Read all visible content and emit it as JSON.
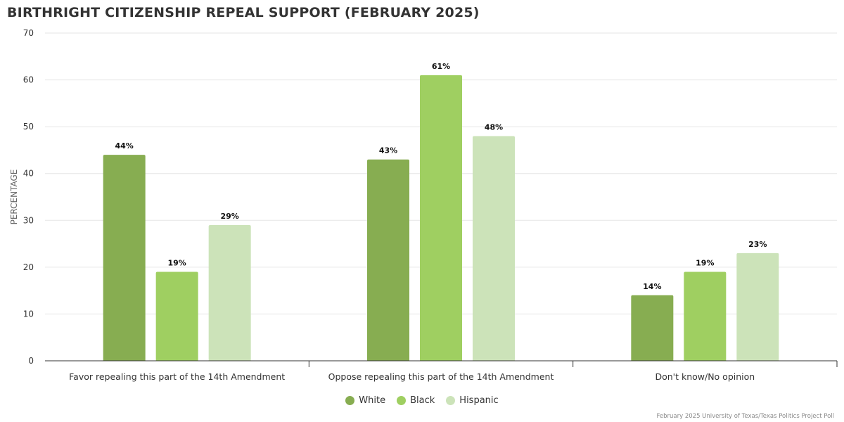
{
  "chart_data": {
    "type": "bar",
    "title": "BIRTHRIGHT CITIZENSHIP REPEAL SUPPORT (FEBRUARY 2025)",
    "xlabel": "",
    "ylabel": "PERCENTAGE",
    "ylim": [
      0,
      70
    ],
    "yticks": [
      0,
      10,
      20,
      30,
      40,
      50,
      60,
      70
    ],
    "grid": true,
    "legend_position": "bottom-center",
    "categories": [
      "Favor repealing this part of the 14th Amendment",
      "Oppose repealing this part of the 14th Amendment",
      "Don't know/No opinion"
    ],
    "series": [
      {
        "name": "White",
        "color": "#87ad51",
        "values": [
          44,
          43,
          14
        ],
        "labels": [
          "44%",
          "43%",
          "14%"
        ]
      },
      {
        "name": "Black",
        "color": "#9fcf61",
        "values": [
          19,
          61,
          19
        ],
        "labels": [
          "19%",
          "61%",
          "19%"
        ]
      },
      {
        "name": "Hispanic",
        "color": "#cce3b9",
        "values": [
          29,
          48,
          23
        ],
        "labels": [
          "29%",
          "48%",
          "23%"
        ]
      }
    ]
  },
  "source_note": "February 2025 University of Texas/Texas Politics Project Poll"
}
